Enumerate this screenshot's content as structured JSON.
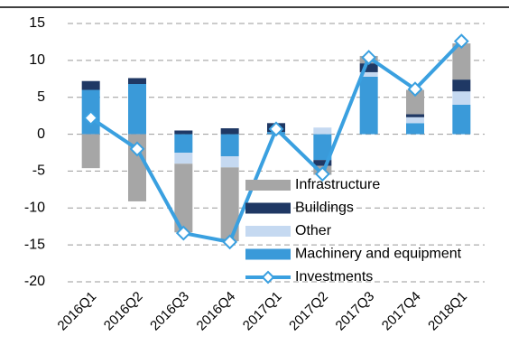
{
  "chart_data": {
    "type": "bar",
    "categories": [
      "2016Q1",
      "2016Q2",
      "2016Q3",
      "2016Q4",
      "2017Q1",
      "2017Q2",
      "2017Q3",
      "2017Q4",
      "2018Q1"
    ],
    "series": [
      {
        "name": "Machinery and equipment",
        "color": "#3a9ad9",
        "values": [
          6.0,
          6.8,
          -2.5,
          -3.0,
          0.3,
          -3.5,
          7.8,
          1.5,
          4.0
        ]
      },
      {
        "name": "Other",
        "color": "#c5d9f1",
        "values": [
          0,
          0,
          -1.5,
          -1.5,
          0,
          0.9,
          0.6,
          0.8,
          1.8
        ]
      },
      {
        "name": "Buildings",
        "color": "#1f3864",
        "values": [
          1.2,
          0.8,
          0.5,
          0.8,
          1.2,
          -0.8,
          1.2,
          0.4,
          1.6
        ]
      },
      {
        "name": "Infrastructure",
        "color": "#a6a6a6",
        "values": [
          -4.6,
          -9.1,
          -9.3,
          -10.0,
          0,
          -1.2,
          1.0,
          3.3,
          4.9
        ]
      },
      {
        "name": "Investments",
        "color": "#3aa0e0",
        "type": "line",
        "values": [
          2.2,
          -2.0,
          -13.4,
          -14.6,
          0.7,
          -5.4,
          10.4,
          6.1,
          12.6
        ]
      }
    ],
    "legend_order": [
      3,
      2,
      1,
      0,
      4
    ],
    "ylim": [
      -20,
      15
    ],
    "yticks": [
      -20,
      -15,
      -10,
      -5,
      0,
      5,
      10,
      15
    ],
    "grid": true
  }
}
